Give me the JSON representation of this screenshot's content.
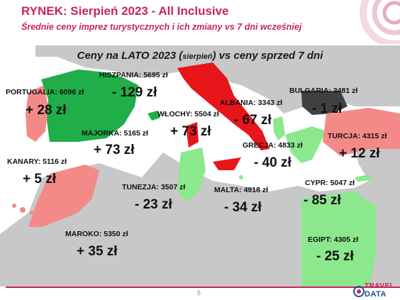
{
  "header": {
    "title": "RYNEK: Sierpień 2023 - All Inclusive",
    "subtitle": "Średnie ceny imprez turystycznych i ich zmiany vs 7 dni wcześniej"
  },
  "map": {
    "title_main": "Ceny na LATO 2023 (",
    "title_sub": "sierpień",
    "title_end": ") vs ceny sprzed 7 dni",
    "colors": {
      "up": "#1fae48",
      "down": "#e8151b",
      "flat": "#404040",
      "up_small": "#f48a88",
      "light_green": "#8ce88c",
      "land": "#c8c8c8",
      "sea": "#ffffff"
    },
    "destinations": [
      {
        "label": "HISZPANIA: 5695 zł",
        "change": "- 129 zł"
      },
      {
        "label": "PORTUGALIA: 6096 zł",
        "change": "+ 28 zł"
      },
      {
        "label": "WŁOCHY: 5504 zł",
        "change": "+ 73 zł"
      },
      {
        "label": "MAJORKA: 5165 zł",
        "change": "+ 73 zł"
      },
      {
        "label": "ALBANIA: 3343 zł",
        "change": "- 67 zł"
      },
      {
        "label": "BULGARIA: 3481 zł",
        "change": "- 1 zł"
      },
      {
        "label": "TURCJA: 4315 zł",
        "change": "+ 12 zł"
      },
      {
        "label": "GRECJA: 4833 zł",
        "change": "- 40 zł"
      },
      {
        "label": "KANARY: 5116 zł",
        "change": "+ 5 zł"
      },
      {
        "label": "TUNEZJA: 3507 zł",
        "change": "- 23 zł"
      },
      {
        "label": "MALTA: 4918 zł",
        "change": "- 34 zł"
      },
      {
        "label": "CYPR: 5047 zł",
        "change": "- 85 zł"
      },
      {
        "label": "MAROKO: 5350 zł",
        "change": "+ 35 zł"
      },
      {
        "label": "EGIPT: 4305 zł",
        "change": "- 25 zł"
      }
    ]
  },
  "footer": {
    "page": "5",
    "logo_top": "TRAVEL",
    "logo_bottom": "DATA"
  }
}
